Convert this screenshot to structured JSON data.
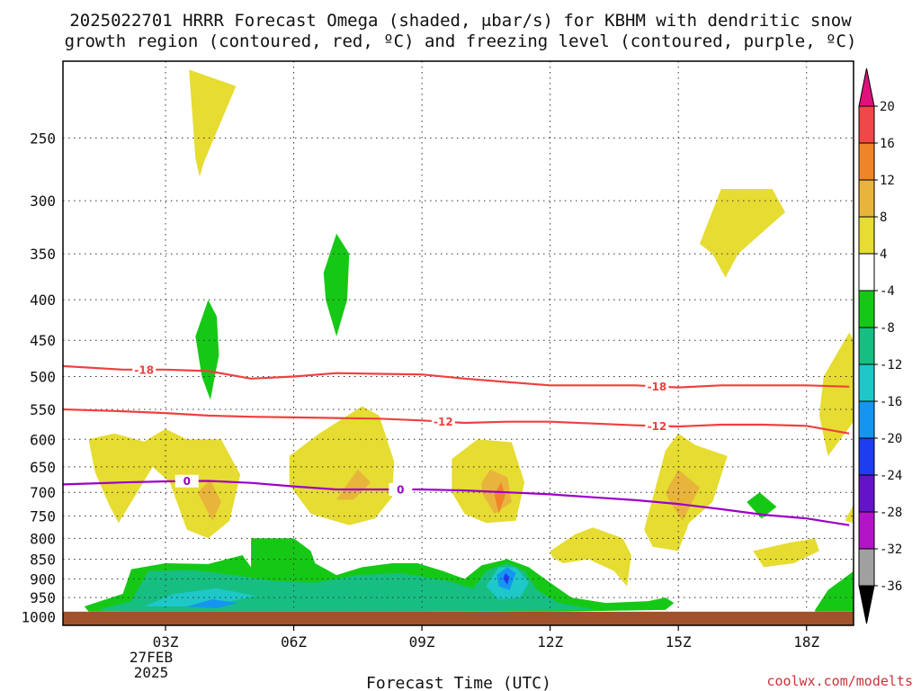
{
  "title": {
    "line1": "2025022701 HRRR Forecast Omega (shaded, μbar/s) for KBHM with dendritic snow",
    "line2": "growth region (contoured, red, ºC) and freezing level (contoured, purple, ºC)"
  },
  "credit": "coolwx.com/modelts",
  "colors": {
    "ground": "#a0522d",
    "dendritic_contour": "#f04040",
    "freezing_contour": "#9c00c8"
  },
  "chart_data": {
    "type": "time-height contour",
    "xlabel": "Forecast Time (UTC)",
    "ylabel": "",
    "x_ticks": [
      "03Z",
      "06Z",
      "09Z",
      "12Z",
      "15Z",
      "18Z"
    ],
    "x_date_label": [
      "27FEB",
      "2025"
    ],
    "y_ticks": [
      250,
      300,
      350,
      400,
      450,
      500,
      550,
      600,
      650,
      700,
      750,
      800,
      850,
      900,
      950,
      1000
    ],
    "y_scale": "log-pressure (hPa), reversed",
    "grid": "dotted",
    "colorbar": {
      "labels": [
        "20",
        "16",
        "12",
        "8",
        "4",
        "-4",
        "-8",
        "-12",
        "-16",
        "-20",
        "-24",
        "-28",
        "-32",
        "-36"
      ],
      "bins": [
        {
          "range": "> 20",
          "color": "#e0107c"
        },
        {
          "range": "16 to 20",
          "color": "#f04848"
        },
        {
          "range": "12 to 16",
          "color": "#f08428"
        },
        {
          "range": "8 to 12",
          "color": "#e8b43c"
        },
        {
          "range": "4 to 8",
          "color": "#e6dc32"
        },
        {
          "range": "-4 to 4",
          "color": "#ffffff"
        },
        {
          "range": "-8 to -4",
          "color": "#16c816"
        },
        {
          "range": "-12 to -8",
          "color": "#16be82"
        },
        {
          "range": "-16 to -12",
          "color": "#1ec8c8"
        },
        {
          "range": "-20 to -16",
          "color": "#1496f0"
        },
        {
          "range": "-24 to -20",
          "color": "#1e3cf0"
        },
        {
          "range": "-28 to -24",
          "color": "#6414c8"
        },
        {
          "range": "-32 to -28",
          "color": "#b414c8"
        },
        {
          "range": "-36 to -32",
          "color": "#a0a0a0"
        },
        {
          "range": "< -36",
          "color": "#000000"
        }
      ]
    },
    "contours": [
      {
        "name": "-18",
        "color": "#f04040",
        "points": [
          [
            0.6,
            485
          ],
          [
            2.0,
            490
          ],
          [
            3.0,
            490
          ],
          [
            4.0,
            492
          ],
          [
            5.0,
            503
          ],
          [
            6.0,
            500
          ],
          [
            7.0,
            495
          ],
          [
            8.0,
            496
          ],
          [
            9.0,
            497
          ],
          [
            10.0,
            503
          ],
          [
            11.0,
            508
          ],
          [
            12.0,
            513
          ],
          [
            13.0,
            513
          ],
          [
            14.0,
            513
          ],
          [
            15.0,
            516
          ],
          [
            16.0,
            513
          ],
          [
            17.0,
            513
          ],
          [
            18.0,
            513
          ],
          [
            19.0,
            515
          ]
        ]
      },
      {
        "name": "-12",
        "color": "#f04040",
        "points": [
          [
            0.6,
            550
          ],
          [
            2.0,
            553
          ],
          [
            3.0,
            556
          ],
          [
            4.0,
            560
          ],
          [
            5.0,
            562
          ],
          [
            6.0,
            563
          ],
          [
            7.0,
            564
          ],
          [
            8.0,
            565
          ],
          [
            9.0,
            568
          ],
          [
            10.0,
            572
          ],
          [
            11.0,
            570
          ],
          [
            12.0,
            570
          ],
          [
            13.0,
            573
          ],
          [
            14.0,
            576
          ],
          [
            15.0,
            578
          ],
          [
            16.0,
            575
          ],
          [
            17.0,
            575
          ],
          [
            18.0,
            577
          ],
          [
            19.0,
            590
          ]
        ]
      },
      {
        "name": "0",
        "color": "#9c00c8",
        "points": [
          [
            0.6,
            684
          ],
          [
            2.0,
            680
          ],
          [
            3.0,
            678
          ],
          [
            4.0,
            677
          ],
          [
            5.0,
            681
          ],
          [
            6.0,
            688
          ],
          [
            7.0,
            694
          ],
          [
            8.0,
            694
          ],
          [
            9.0,
            694
          ],
          [
            10.0,
            696
          ],
          [
            11.0,
            700
          ],
          [
            12.0,
            704
          ],
          [
            13.0,
            710
          ],
          [
            14.0,
            716
          ],
          [
            15.0,
            724
          ],
          [
            16.0,
            735
          ],
          [
            17.0,
            747
          ],
          [
            18.0,
            755
          ],
          [
            19.0,
            770
          ]
        ]
      }
    ],
    "shaded_regions": [
      {
        "bin": "4 to 8",
        "points": [
          [
            3.55,
            205
          ],
          [
            4.65,
            215
          ],
          [
            3.9,
            268
          ],
          [
            3.8,
            280
          ],
          [
            3.7,
            265
          ]
        ]
      },
      {
        "bin": "4 to 8",
        "points": [
          [
            1.2,
            600
          ],
          [
            1.8,
            590
          ],
          [
            2.5,
            604
          ],
          [
            3.0,
            582
          ],
          [
            3.5,
            600
          ],
          [
            4.3,
            600
          ],
          [
            4.75,
            665
          ],
          [
            4.5,
            760
          ],
          [
            4.0,
            800
          ],
          [
            3.5,
            780
          ],
          [
            3.1,
            680
          ],
          [
            2.7,
            650
          ],
          [
            2.2,
            720
          ],
          [
            1.9,
            765
          ],
          [
            1.7,
            730
          ],
          [
            1.35,
            660
          ]
        ]
      },
      {
        "bin": "8 to 12",
        "points": [
          [
            4.05,
            675
          ],
          [
            4.3,
            720
          ],
          [
            4.1,
            760
          ],
          [
            3.75,
            700
          ]
        ]
      },
      {
        "bin": "4 to 8",
        "points": [
          [
            5.9,
            630
          ],
          [
            6.6,
            590
          ],
          [
            7.6,
            545
          ],
          [
            8.0,
            560
          ],
          [
            8.35,
            640
          ],
          [
            8.3,
            710
          ],
          [
            7.9,
            755
          ],
          [
            7.3,
            770
          ],
          [
            6.4,
            745
          ],
          [
            5.9,
            685
          ]
        ]
      },
      {
        "bin": "8 to 12",
        "points": [
          [
            7.5,
            655
          ],
          [
            7.8,
            680
          ],
          [
            7.4,
            715
          ],
          [
            7.0,
            715
          ],
          [
            7.2,
            690
          ]
        ]
      },
      {
        "bin": "4 to 8",
        "points": [
          [
            9.7,
            635
          ],
          [
            10.3,
            600
          ],
          [
            11.1,
            605
          ],
          [
            11.4,
            680
          ],
          [
            11.2,
            760
          ],
          [
            10.5,
            765
          ],
          [
            10.0,
            745
          ],
          [
            9.7,
            700
          ]
        ]
      },
      {
        "bin": "8 to 12",
        "points": [
          [
            10.6,
            655
          ],
          [
            11.0,
            670
          ],
          [
            11.1,
            720
          ],
          [
            10.7,
            745
          ],
          [
            10.4,
            700
          ],
          [
            10.4,
            680
          ]
        ]
      },
      {
        "bin": "12 to 16",
        "points": [
          [
            10.85,
            680
          ],
          [
            10.95,
            705
          ],
          [
            10.8,
            745
          ],
          [
            10.7,
            705
          ]
        ]
      },
      {
        "bin": "4 to 8",
        "points": [
          [
            12.0,
            830
          ],
          [
            12.6,
            790
          ],
          [
            13.0,
            775
          ],
          [
            13.7,
            800
          ],
          [
            13.9,
            840
          ],
          [
            13.8,
            920
          ],
          [
            13.5,
            880
          ],
          [
            12.9,
            850
          ],
          [
            12.3,
            860
          ],
          [
            12.05,
            845
          ]
        ]
      },
      {
        "bin": "4 to 8",
        "points": [
          [
            14.2,
            780
          ],
          [
            14.7,
            620
          ],
          [
            15.0,
            590
          ],
          [
            15.4,
            610
          ],
          [
            16.15,
            630
          ],
          [
            15.8,
            720
          ],
          [
            15.25,
            765
          ],
          [
            15.0,
            830
          ],
          [
            14.4,
            820
          ]
        ]
      },
      {
        "bin": "8 to 12",
        "points": [
          [
            14.7,
            700
          ],
          [
            15.0,
            655
          ],
          [
            15.5,
            690
          ],
          [
            15.1,
            760
          ],
          [
            14.8,
            720
          ]
        ]
      },
      {
        "bin": "4 to 8",
        "points": [
          [
            15.5,
            340
          ],
          [
            16.0,
            290
          ],
          [
            17.2,
            290
          ],
          [
            17.5,
            310
          ],
          [
            16.4,
            350
          ],
          [
            16.1,
            375
          ],
          [
            15.8,
            350
          ]
        ]
      },
      {
        "bin": "4 to 8",
        "points": [
          [
            16.75,
            830
          ],
          [
            17.6,
            810
          ],
          [
            18.2,
            800
          ],
          [
            18.3,
            830
          ],
          [
            17.7,
            860
          ],
          [
            17.0,
            870
          ]
        ]
      },
      {
        "bin": "4 to 8",
        "points": [
          [
            18.4,
            500
          ],
          [
            19.0,
            440
          ],
          [
            19.1,
            450
          ],
          [
            19.1,
            570
          ],
          [
            18.5,
            630
          ],
          [
            18.3,
            560
          ]
        ]
      },
      {
        "bin": "4 to 8",
        "points": [
          [
            19.1,
            725
          ],
          [
            19.1,
            765
          ],
          [
            18.9,
            760
          ]
        ]
      },
      {
        "bin": "-8 to -4",
        "points": [
          [
            3.7,
            445
          ],
          [
            4.0,
            400
          ],
          [
            4.2,
            420
          ],
          [
            4.25,
            470
          ],
          [
            4.05,
            535
          ],
          [
            3.85,
            500
          ]
        ]
      },
      {
        "bin": "-8 to -4",
        "points": [
          [
            6.7,
            370
          ],
          [
            7.0,
            330
          ],
          [
            7.3,
            350
          ],
          [
            7.25,
            400
          ],
          [
            7.0,
            445
          ],
          [
            6.75,
            400
          ]
        ]
      },
      {
        "bin": "-8 to -4",
        "points": [
          [
            16.6,
            720
          ],
          [
            16.9,
            700
          ],
          [
            17.3,
            730
          ],
          [
            16.95,
            755
          ]
        ]
      },
      {
        "bin": "-8 to -4",
        "points": [
          [
            1.1,
            975
          ],
          [
            2.0,
            940
          ],
          [
            2.2,
            875
          ],
          [
            3.0,
            860
          ],
          [
            4.0,
            862
          ],
          [
            4.8,
            840
          ],
          [
            5.0,
            870
          ],
          [
            5.0,
            800
          ],
          [
            6.0,
            800
          ],
          [
            6.4,
            830
          ],
          [
            6.5,
            860
          ],
          [
            7.0,
            890
          ],
          [
            7.6,
            870
          ],
          [
            8.3,
            860
          ],
          [
            8.9,
            860
          ],
          [
            9.5,
            880
          ],
          [
            10.0,
            900
          ],
          [
            10.4,
            865
          ],
          [
            11.0,
            850
          ],
          [
            11.5,
            870
          ],
          [
            12.0,
            910
          ],
          [
            12.5,
            950
          ],
          [
            13.3,
            965
          ],
          [
            14.3,
            960
          ],
          [
            14.7,
            950
          ],
          [
            14.9,
            965
          ],
          [
            14.7,
            985
          ],
          [
            12.0,
            990
          ],
          [
            6.0,
            990
          ],
          [
            1.2,
            990
          ]
        ]
      },
      {
        "bin": "-8 to -4",
        "points": [
          [
            18.2,
            985
          ],
          [
            18.5,
            930
          ],
          [
            19.1,
            880
          ],
          [
            19.1,
            990
          ],
          [
            18.2,
            990
          ]
        ]
      },
      {
        "bin": "-12 to -8",
        "points": [
          [
            1.4,
            985
          ],
          [
            2.2,
            960
          ],
          [
            2.6,
            880
          ],
          [
            3.6,
            877
          ],
          [
            4.6,
            890
          ],
          [
            5.5,
            905
          ],
          [
            6.5,
            910
          ],
          [
            7.5,
            890
          ],
          [
            8.5,
            885
          ],
          [
            9.6,
            905
          ],
          [
            10.2,
            925
          ],
          [
            10.5,
            880
          ],
          [
            11.0,
            860
          ],
          [
            11.4,
            880
          ],
          [
            11.7,
            930
          ],
          [
            12.2,
            965
          ],
          [
            13.1,
            985
          ],
          [
            9.0,
            990
          ],
          [
            2.0,
            990
          ]
        ]
      },
      {
        "bin": "-16 to -12",
        "points": [
          [
            2.5,
            975
          ],
          [
            3.2,
            940
          ],
          [
            4.2,
            925
          ],
          [
            5.1,
            945
          ],
          [
            4.0,
            975
          ]
        ]
      },
      {
        "bin": "-16 to -12",
        "points": [
          [
            10.5,
            920
          ],
          [
            10.8,
            870
          ],
          [
            11.2,
            870
          ],
          [
            11.5,
            910
          ],
          [
            11.3,
            950
          ],
          [
            10.8,
            955
          ]
        ]
      },
      {
        "bin": "-20 to -16",
        "points": [
          [
            10.75,
            890
          ],
          [
            11.0,
            870
          ],
          [
            11.2,
            885
          ],
          [
            11.05,
            930
          ],
          [
            10.8,
            920
          ]
        ]
      },
      {
        "bin": "-20 to -16",
        "points": [
          [
            3.5,
            975
          ],
          [
            4.1,
            955
          ],
          [
            4.7,
            965
          ],
          [
            4.2,
            980
          ]
        ]
      },
      {
        "bin": "-24 to -20",
        "points": [
          [
            10.95,
            885
          ],
          [
            11.05,
            895
          ],
          [
            11.0,
            915
          ],
          [
            10.9,
            900
          ]
        ]
      }
    ]
  }
}
